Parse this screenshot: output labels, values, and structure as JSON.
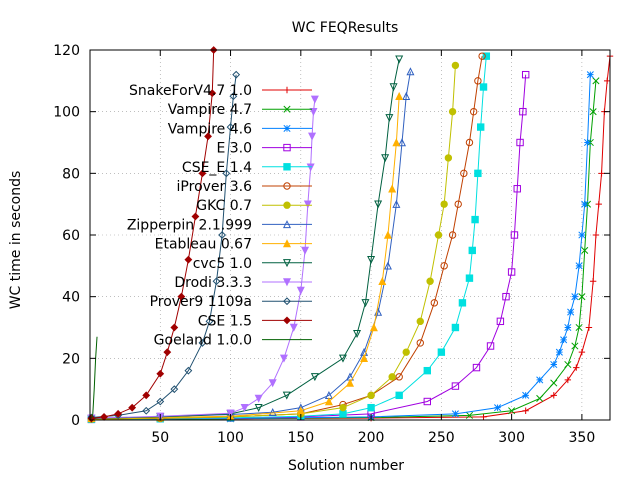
{
  "chart_data": {
    "type": "line",
    "title": "WC FEQResults",
    "xlabel": "Solution number",
    "ylabel": "WC time in seconds",
    "xlim": [
      0,
      370
    ],
    "ylim": [
      0,
      120
    ],
    "xticks": [
      50,
      100,
      150,
      200,
      250,
      300,
      350
    ],
    "yticks": [
      0,
      20,
      40,
      60,
      80,
      100,
      120
    ],
    "grid": true,
    "legend_position": "top-left",
    "series": [
      {
        "name": "SnakeForV4.7 1.0",
        "color": "#e00000",
        "marker": "plus",
        "x": [
          1,
          100,
          200,
          280,
          310,
          330,
          340,
          346,
          350,
          355,
          358,
          360,
          362,
          364,
          366,
          368,
          370
        ],
        "y": [
          0.3,
          0.4,
          0.6,
          1,
          3,
          8,
          13,
          17,
          22,
          30,
          45,
          60,
          70,
          80,
          100,
          110,
          118
        ]
      },
      {
        "name": "Vampire 4.7",
        "color": "#00a000",
        "marker": "cross",
        "x": [
          1,
          100,
          200,
          270,
          300,
          320,
          330,
          340,
          345,
          348,
          350,
          352,
          354,
          356,
          358,
          360
        ],
        "y": [
          0.2,
          0.4,
          0.8,
          1.5,
          3,
          7,
          12,
          18,
          24,
          30,
          40,
          55,
          70,
          90,
          100,
          110
        ]
      },
      {
        "name": "Vampire 4.6",
        "color": "#0080ff",
        "marker": "asterisk",
        "x": [
          1,
          100,
          200,
          260,
          290,
          310,
          320,
          330,
          334,
          337,
          340,
          342,
          345,
          348,
          350,
          352,
          354,
          356
        ],
        "y": [
          0.3,
          0.5,
          1,
          2,
          4,
          8,
          13,
          18,
          22,
          26,
          30,
          35,
          40,
          50,
          60,
          70,
          90,
          112
        ]
      },
      {
        "name": "E 3.0",
        "color": "#a000e0",
        "marker": "square",
        "x": [
          1,
          50,
          100,
          150,
          200,
          240,
          260,
          275,
          285,
          292,
          296,
          300,
          302,
          304,
          306,
          308,
          310
        ],
        "y": [
          0.2,
          0.4,
          0.6,
          1,
          2,
          6,
          11,
          17,
          24,
          32,
          40,
          48,
          60,
          75,
          90,
          100,
          112
        ]
      },
      {
        "name": "CSE_E 1.4",
        "color": "#00e0e0",
        "marker": "filled-square",
        "x": [
          1,
          50,
          100,
          150,
          180,
          200,
          220,
          240,
          250,
          260,
          265,
          270,
          272,
          274,
          276,
          278,
          280,
          282
        ],
        "y": [
          0.2,
          0.4,
          0.7,
          1.2,
          2,
          4,
          8,
          16,
          22,
          30,
          38,
          46,
          55,
          65,
          80,
          95,
          108,
          118
        ]
      },
      {
        "name": "iProver 3.6",
        "color": "#c04000",
        "marker": "circle",
        "x": [
          1,
          50,
          100,
          150,
          180,
          200,
          220,
          235,
          245,
          252,
          258,
          262,
          266,
          270,
          273,
          276,
          279
        ],
        "y": [
          0.3,
          0.5,
          1,
          2,
          5,
          8,
          14,
          25,
          38,
          50,
          60,
          70,
          80,
          90,
          100,
          110,
          118
        ]
      },
      {
        "name": "GKC 0.7",
        "color": "#c0c000",
        "marker": "filled-circle",
        "x": [
          1,
          50,
          100,
          150,
          180,
          200,
          215,
          225,
          235,
          242,
          248,
          252,
          255,
          258,
          260
        ],
        "y": [
          0.3,
          0.6,
          1,
          2,
          4,
          8,
          14,
          22,
          32,
          45,
          60,
          70,
          85,
          100,
          115
        ]
      },
      {
        "name": "Zipperpin 2.1.999",
        "color": "#3060c0",
        "marker": "triangle",
        "x": [
          1,
          50,
          100,
          130,
          150,
          170,
          185,
          195,
          205,
          212,
          218,
          222,
          225,
          228
        ],
        "y": [
          0.5,
          1,
          1.8,
          2.5,
          4,
          8,
          14,
          22,
          35,
          50,
          70,
          90,
          105,
          113
        ]
      },
      {
        "name": "Etableau 0.67",
        "color": "#ffb000",
        "marker": "filled-triangle",
        "x": [
          1,
          50,
          100,
          150,
          170,
          185,
          195,
          202,
          208,
          212,
          215,
          218,
          220
        ],
        "y": [
          0.5,
          0.8,
          1.2,
          3,
          6,
          12,
          20,
          30,
          45,
          60,
          75,
          90,
          105
        ]
      },
      {
        "name": "cvc5 1.0",
        "color": "#006040",
        "marker": "inverted-triangle",
        "x": [
          1,
          50,
          100,
          120,
          140,
          160,
          180,
          190,
          196,
          200,
          205,
          210,
          213,
          216,
          220
        ],
        "y": [
          0.5,
          1,
          2,
          4,
          8,
          14,
          20,
          28,
          38,
          52,
          70,
          85,
          98,
          108,
          117
        ]
      },
      {
        "name": "Drodi 3.3.3",
        "color": "#b070ff",
        "marker": "filled-inverted-triangle",
        "x": [
          1,
          50,
          100,
          110,
          120,
          130,
          138,
          145,
          150,
          153,
          155,
          157,
          158,
          159,
          160
        ],
        "y": [
          0.6,
          1.2,
          2.2,
          4,
          7,
          12,
          20,
          30,
          42,
          55,
          70,
          82,
          92,
          100,
          104
        ]
      },
      {
        "name": "Prover9 1109a",
        "color": "#205070",
        "marker": "diamond",
        "x": [
          1,
          20,
          40,
          50,
          60,
          70,
          80,
          85,
          90,
          94,
          97,
          100,
          102,
          104
        ],
        "y": [
          0.8,
          1.5,
          3,
          6,
          10,
          16,
          25,
          32,
          45,
          60,
          80,
          95,
          105,
          112
        ]
      },
      {
        "name": "CSE 1.5",
        "color": "#a00000",
        "marker": "filled-diamond",
        "x": [
          1,
          10,
          20,
          30,
          40,
          50,
          55,
          60,
          65,
          70,
          75,
          80,
          84,
          87,
          88
        ],
        "y": [
          0.5,
          1,
          2,
          4,
          8,
          15,
          22,
          30,
          40,
          52,
          66,
          80,
          92,
          106,
          120
        ]
      },
      {
        "name": "Goeland 1.0.0",
        "color": "#006000",
        "marker": "line-only",
        "x": [
          1,
          2,
          3,
          4,
          5
        ],
        "y": [
          0.5,
          2,
          10,
          20,
          27
        ]
      }
    ]
  }
}
